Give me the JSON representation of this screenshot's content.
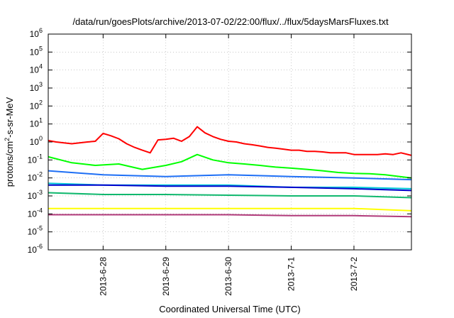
{
  "chart_data": {
    "type": "line",
    "title": "/data/run/goesPlots/archive/2013-07-02/22:00/flux/../flux/5daysMarsFluxes.txt",
    "xlabel": "Coordinated Universal Time (UTC)",
    "ylabel": {
      "prefix": "protons/cm",
      "sup": "2",
      "suffix": "-s-sr-MeV"
    },
    "y_scale": "log",
    "ylim_exponents": [
      -6,
      6
    ],
    "y_ticks": [
      {
        "base": "10",
        "exp": "-6"
      },
      {
        "base": "10",
        "exp": "-5"
      },
      {
        "base": "10",
        "exp": "-4"
      },
      {
        "base": "10",
        "exp": "-3"
      },
      {
        "base": "10",
        "exp": "-2"
      },
      {
        "base": "10",
        "exp": "-1"
      },
      {
        "base": "10",
        "exp": "0"
      },
      {
        "base": "10",
        "exp": "1"
      },
      {
        "base": "10",
        "exp": "2"
      },
      {
        "base": "10",
        "exp": "3"
      },
      {
        "base": "10",
        "exp": "4"
      },
      {
        "base": "10",
        "exp": "5"
      },
      {
        "base": "10",
        "exp": "6"
      }
    ],
    "xlim": [
      "2013-06-27 03:00",
      "2013-07-02 22:00"
    ],
    "x_ticks": [
      {
        "date": "2013-06-28 00:00",
        "label": "2013-6-28"
      },
      {
        "date": "2013-06-29 00:00",
        "label": "2013-6-29"
      },
      {
        "date": "2013-06-30 00:00",
        "label": "2013-6-30"
      },
      {
        "date": "2013-07-01 00:00",
        "label": "2013-7-1"
      },
      {
        "date": "2013-07-02 00:00",
        "label": "2013-7-2"
      }
    ],
    "grid": true,
    "legend": "none",
    "series": [
      {
        "color": "#ff0000",
        "x": [
          "2013-06-27 03:00",
          "2013-06-27 06:00",
          "2013-06-27 09:00",
          "2013-06-27 12:00",
          "2013-06-27 15:00",
          "2013-06-27 18:00",
          "2013-06-27 21:00",
          "2013-06-28 00:00",
          "2013-06-28 03:00",
          "2013-06-28 06:00",
          "2013-06-28 09:00",
          "2013-06-28 12:00",
          "2013-06-28 15:00",
          "2013-06-28 18:00",
          "2013-06-28 21:00",
          "2013-06-29 00:00",
          "2013-06-29 03:00",
          "2013-06-29 06:00",
          "2013-06-29 09:00",
          "2013-06-29 12:00",
          "2013-06-29 15:00",
          "2013-06-29 18:00",
          "2013-06-29 21:00",
          "2013-06-30 00:00",
          "2013-06-30 03:00",
          "2013-06-30 06:00",
          "2013-06-30 09:00",
          "2013-06-30 12:00",
          "2013-06-30 15:00",
          "2013-06-30 18:00",
          "2013-06-30 21:00",
          "2013-07-01 00:00",
          "2013-07-01 03:00",
          "2013-07-01 06:00",
          "2013-07-01 09:00",
          "2013-07-01 12:00",
          "2013-07-01 15:00",
          "2013-07-01 18:00",
          "2013-07-01 21:00",
          "2013-07-02 00:00",
          "2013-07-02 03:00",
          "2013-07-02 06:00",
          "2013-07-02 09:00",
          "2013-07-02 12:00",
          "2013-07-02 15:00",
          "2013-07-02 18:00",
          "2013-07-02 22:00"
        ],
        "values": [
          1.2,
          1.0,
          0.9,
          0.8,
          0.9,
          1.0,
          1.1,
          3.0,
          2.2,
          1.5,
          0.8,
          0.5,
          0.35,
          0.25,
          1.3,
          1.4,
          1.6,
          1.1,
          2.0,
          7.0,
          3.2,
          2.0,
          1.4,
          1.1,
          1.0,
          0.8,
          0.7,
          0.6,
          0.5,
          0.45,
          0.4,
          0.35,
          0.35,
          0.3,
          0.3,
          0.28,
          0.25,
          0.25,
          0.25,
          0.2,
          0.2,
          0.2,
          0.2,
          0.22,
          0.2,
          0.25,
          0.18
        ]
      },
      {
        "color": "#00ff00",
        "x": [
          "2013-06-27 03:00",
          "2013-06-27 12:00",
          "2013-06-27 21:00",
          "2013-06-28 06:00",
          "2013-06-28 15:00",
          "2013-06-29 00:00",
          "2013-06-29 06:00",
          "2013-06-29 12:00",
          "2013-06-29 18:00",
          "2013-06-30 00:00",
          "2013-06-30 06:00",
          "2013-06-30 12:00",
          "2013-06-30 18:00",
          "2013-07-01 00:00",
          "2013-07-01 06:00",
          "2013-07-01 12:00",
          "2013-07-01 18:00",
          "2013-07-02 00:00",
          "2013-07-02 06:00",
          "2013-07-02 12:00",
          "2013-07-02 22:00"
        ],
        "values": [
          0.15,
          0.07,
          0.05,
          0.06,
          0.03,
          0.05,
          0.08,
          0.2,
          0.1,
          0.07,
          0.06,
          0.05,
          0.04,
          0.035,
          0.03,
          0.025,
          0.02,
          0.018,
          0.017,
          0.015,
          0.01
        ]
      },
      {
        "color": "#1e6ff5",
        "x": [
          "2013-06-27 03:00",
          "2013-06-28 00:00",
          "2013-06-29 00:00",
          "2013-06-30 00:00",
          "2013-07-01 00:00",
          "2013-07-02 00:00",
          "2013-07-02 22:00"
        ],
        "values": [
          0.025,
          0.015,
          0.012,
          0.015,
          0.012,
          0.01,
          0.008
        ]
      },
      {
        "color": "#00c8d7",
        "x": [
          "2013-06-27 03:00",
          "2013-06-28 00:00",
          "2013-06-29 00:00",
          "2013-06-30 00:00",
          "2013-07-01 00:00",
          "2013-07-02 00:00",
          "2013-07-02 22:00"
        ],
        "values": [
          0.005,
          0.004,
          0.004,
          0.004,
          0.003,
          0.003,
          0.0025
        ]
      },
      {
        "color": "#0000cd",
        "x": [
          "2013-06-27 03:00",
          "2013-06-28 00:00",
          "2013-06-29 00:00",
          "2013-06-30 00:00",
          "2013-07-01 00:00",
          "2013-07-02 00:00",
          "2013-07-02 22:00"
        ],
        "values": [
          0.004,
          0.004,
          0.0035,
          0.0035,
          0.003,
          0.0025,
          0.002
        ]
      },
      {
        "color": "#10b86e",
        "x": [
          "2013-06-27 03:00",
          "2013-06-28 00:00",
          "2013-06-29 00:00",
          "2013-06-30 00:00",
          "2013-07-01 00:00",
          "2013-07-02 00:00",
          "2013-07-02 22:00"
        ],
        "values": [
          0.0015,
          0.0012,
          0.0012,
          0.0011,
          0.001,
          0.001,
          0.0008
        ]
      },
      {
        "color": "#ffff00",
        "x": [
          "2013-06-27 03:00",
          "2013-06-28 00:00",
          "2013-06-29 00:00",
          "2013-06-30 00:00",
          "2013-07-01 00:00",
          "2013-07-02 00:00",
          "2013-07-02 22:00"
        ],
        "values": [
          0.0002,
          0.0002,
          0.0002,
          0.0002,
          0.0002,
          0.0002,
          0.00015
        ]
      },
      {
        "color": "#b03a7a",
        "x": [
          "2013-06-27 03:00",
          "2013-06-28 00:00",
          "2013-06-29 00:00",
          "2013-06-30 00:00",
          "2013-07-01 00:00",
          "2013-07-02 00:00",
          "2013-07-02 22:00"
        ],
        "values": [
          9e-05,
          9e-05,
          9e-05,
          9e-05,
          8e-05,
          8e-05,
          7e-05
        ]
      }
    ]
  }
}
